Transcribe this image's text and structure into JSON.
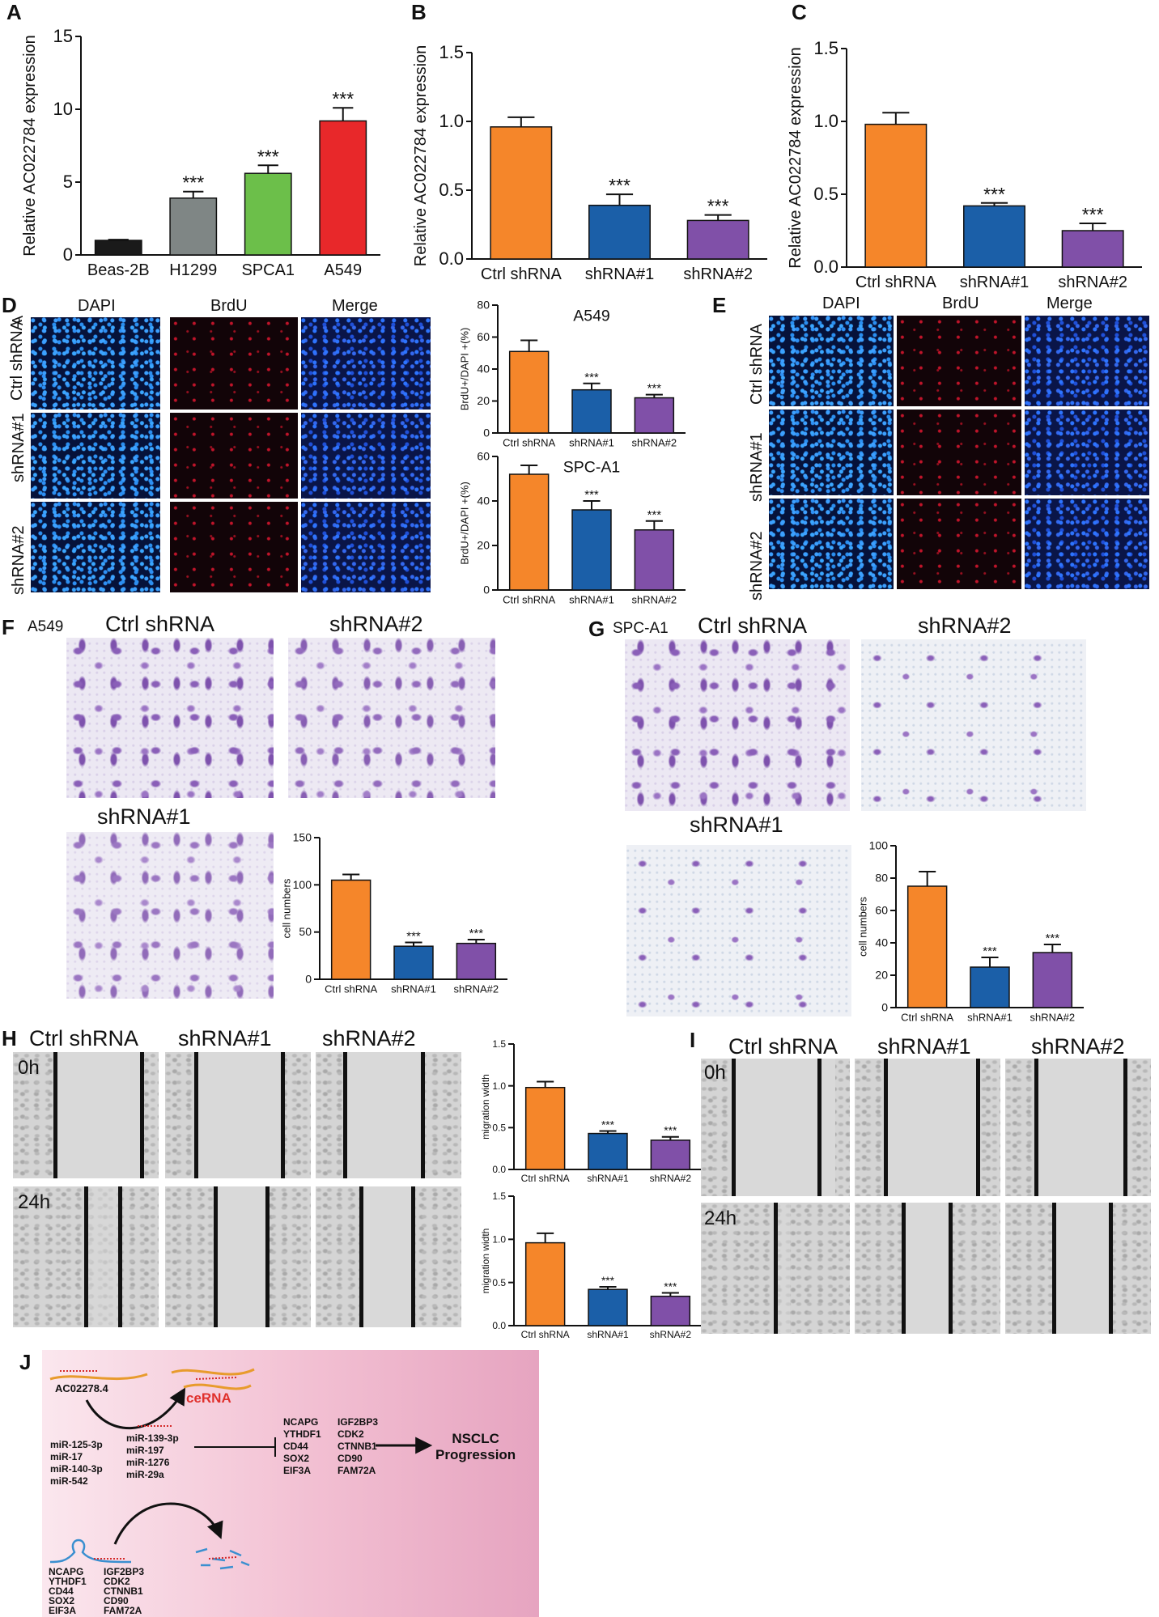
{
  "panels": {
    "A": {
      "label": "A"
    },
    "B": {
      "label": "B"
    },
    "C": {
      "label": "C"
    },
    "D": {
      "label": "D",
      "col_headers": [
        "DAPI",
        "BrdU",
        "Merge"
      ],
      "row_labels": [
        "Ctrl shRNA",
        "shRNA#1",
        "shRNA#2"
      ],
      "cell": "A"
    },
    "E": {
      "label": "E",
      "col_headers": [
        "DAPI",
        "BrdU",
        "Merge"
      ],
      "row_labels": [
        "Ctrl shRNA",
        "shRNA#1",
        "shRNA#2"
      ]
    },
    "F": {
      "label": "F",
      "cell": "A549",
      "img_labels": [
        "Ctrl shRNA",
        "shRNA#2",
        "shRNA#1"
      ]
    },
    "G": {
      "label": "G",
      "cell": "SPC-A1",
      "img_labels": [
        "Ctrl shRNA",
        "shRNA#2",
        "shRNA#1"
      ]
    },
    "H": {
      "label": "H",
      "col_headers": [
        "Ctrl shRNA",
        "shRNA#1",
        "shRNA#2"
      ],
      "row_labels": [
        "0h",
        "24h"
      ]
    },
    "I": {
      "label": "I",
      "col_headers": [
        "Ctrl shRNA",
        "shRNA#1",
        "shRNA#2"
      ],
      "row_labels": [
        "0h",
        "24h"
      ]
    },
    "J": {
      "label": "J",
      "lncrna": "AC02278.4",
      "cerna": "ceRNA",
      "mirs_left": [
        "miR-125-3p",
        "miR-17",
        "miR-140-3p",
        "miR-542"
      ],
      "mirs_right": [
        "miR-139-3p",
        "miR-197",
        "miR-1276",
        "miR-29a"
      ],
      "targets_left": [
        "NCAPG",
        "YTHDF1",
        "CD44",
        "SOX2",
        "EIF3A"
      ],
      "targets_right": [
        "IGF2BP3",
        "CDK2",
        "CTNNB1",
        "CD90",
        "FAM72A"
      ],
      "outcome": [
        "NSCLC",
        "Progression"
      ],
      "bottom_left": [
        "NCAPG",
        "YTHDF1",
        "CD44",
        "SOX2",
        "EIF3A"
      ],
      "bottom_right": [
        "IGF2BP3",
        "CDK2",
        "CTNNB1",
        "CD90",
        "FAM72A"
      ]
    }
  },
  "chart_data": [
    {
      "id": "A",
      "type": "bar",
      "categories": [
        "Beas-2B",
        "H1299",
        "SPCA1",
        "A549"
      ],
      "values": [
        1.0,
        3.9,
        5.6,
        9.2
      ],
      "errors": [
        0.05,
        0.45,
        0.55,
        0.9
      ],
      "ylabel": "Relative AC022784 expression",
      "ylim": [
        0,
        15
      ],
      "yticks": [
        "0",
        "5",
        "10",
        "15"
      ],
      "colors": [
        "#1a1a1a",
        "#7f8685",
        "#6cbf4a",
        "#e8282a"
      ],
      "sig": [
        "",
        "***",
        "***",
        "***"
      ]
    },
    {
      "id": "B",
      "type": "bar",
      "categories": [
        "Ctrl shRNA",
        "shRNA#1",
        "shRNA#2"
      ],
      "values": [
        0.96,
        0.39,
        0.28
      ],
      "errors": [
        0.07,
        0.08,
        0.04
      ],
      "ylabel": "Relative AC022784 expression",
      "ylim": [
        0,
        1.5
      ],
      "yticks": [
        "0.0",
        "0.5",
        "1.0",
        "1.5"
      ],
      "colors": [
        "#f5862a",
        "#1b5fa8",
        "#8050a8"
      ],
      "sig": [
        "",
        "***",
        "***"
      ]
    },
    {
      "id": "C",
      "type": "bar",
      "categories": [
        "Ctrl shRNA",
        "shRNA#1",
        "shRNA#2"
      ],
      "values": [
        0.98,
        0.42,
        0.25
      ],
      "errors": [
        0.08,
        0.02,
        0.05
      ],
      "ylabel": "Relative AC022784 expression",
      "ylim": [
        0,
        1.5
      ],
      "yticks": [
        "0.0",
        "0.5",
        "1.0",
        "1.5"
      ],
      "colors": [
        "#f5862a",
        "#1b5fa8",
        "#8050a8"
      ],
      "sig": [
        "",
        "***",
        "***"
      ]
    },
    {
      "id": "D1",
      "type": "bar",
      "title": "A549",
      "categories": [
        "Ctrl shRNA",
        "shRNA#1",
        "shRNA#2"
      ],
      "values": [
        51,
        27,
        22
      ],
      "errors": [
        7,
        4,
        2
      ],
      "ylabel": "BrdU+/DAPI +(%)",
      "ylim": [
        0,
        80
      ],
      "yticks": [
        "0",
        "20",
        "40",
        "60",
        "80"
      ],
      "colors": [
        "#f5862a",
        "#1b5fa8",
        "#8050a8"
      ],
      "sig": [
        "",
        "***",
        "***"
      ]
    },
    {
      "id": "D2",
      "type": "bar",
      "title": "SPC-A1",
      "categories": [
        "Ctrl shRNA",
        "shRNA#1",
        "shRNA#2"
      ],
      "values": [
        52,
        36,
        27
      ],
      "errors": [
        4,
        4,
        4
      ],
      "ylabel": "BrdU+/DAPI +(%)",
      "ylim": [
        0,
        60
      ],
      "yticks": [
        "0",
        "20",
        "40",
        "60"
      ],
      "colors": [
        "#f5862a",
        "#1b5fa8",
        "#8050a8"
      ],
      "sig": [
        "",
        "***",
        "***"
      ]
    },
    {
      "id": "F",
      "type": "bar",
      "categories": [
        "Ctrl shRNA",
        "shRNA#1",
        "shRNA#2"
      ],
      "values": [
        105,
        35,
        38
      ],
      "errors": [
        6,
        4,
        4
      ],
      "ylabel": "cell numbers",
      "ylim": [
        0,
        150
      ],
      "yticks": [
        "0",
        "50",
        "100",
        "150"
      ],
      "colors": [
        "#f5862a",
        "#1b5fa8",
        "#8050a8"
      ],
      "sig": [
        "",
        "***",
        "***"
      ]
    },
    {
      "id": "G",
      "type": "bar",
      "categories": [
        "Ctrl shRNA",
        "shRNA#1",
        "shRNA#2"
      ],
      "values": [
        75,
        25,
        34
      ],
      "errors": [
        9,
        6,
        5
      ],
      "ylabel": "cell numbers",
      "ylim": [
        0,
        100
      ],
      "yticks": [
        "0",
        "20",
        "40",
        "60",
        "80",
        "100"
      ],
      "colors": [
        "#f5862a",
        "#1b5fa8",
        "#8050a8"
      ],
      "sig": [
        "",
        "***",
        "***"
      ]
    },
    {
      "id": "H1",
      "type": "bar",
      "categories": [
        "Ctrl shRNA",
        "shRNA#1",
        "shRNA#2"
      ],
      "values": [
        0.98,
        0.43,
        0.35
      ],
      "errors": [
        0.07,
        0.03,
        0.04
      ],
      "ylabel": "migration width",
      "ylim": [
        0,
        1.5
      ],
      "yticks": [
        "0.0",
        "0.5",
        "1.0",
        "1.5"
      ],
      "colors": [
        "#f5862a",
        "#1b5fa8",
        "#8050a8"
      ],
      "sig": [
        "",
        "***",
        "***"
      ]
    },
    {
      "id": "H2",
      "type": "bar",
      "categories": [
        "Ctrl shRNA",
        "shRNA#1",
        "shRNA#2"
      ],
      "values": [
        0.96,
        0.42,
        0.34
      ],
      "errors": [
        0.11,
        0.03,
        0.04
      ],
      "ylabel": "migration width",
      "ylim": [
        0,
        1.5
      ],
      "yticks": [
        "0.0",
        "0.5",
        "1.0",
        "1.5"
      ],
      "colors": [
        "#f5862a",
        "#1b5fa8",
        "#8050a8"
      ],
      "sig": [
        "",
        "***",
        "***"
      ]
    }
  ]
}
